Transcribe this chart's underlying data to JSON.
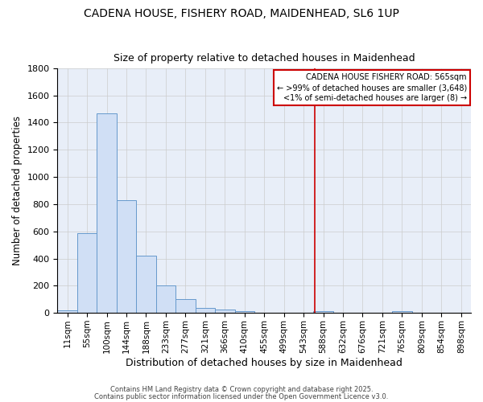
{
  "title1": "CADENA HOUSE, FISHERY ROAD, MAIDENHEAD, SL6 1UP",
  "title2": "Size of property relative to detached houses in Maidenhead",
  "xlabel": "Distribution of detached houses by size in Maidenhead",
  "ylabel": "Number of detached properties",
  "bin_labels": [
    "11sqm",
    "55sqm",
    "100sqm",
    "144sqm",
    "188sqm",
    "233sqm",
    "277sqm",
    "321sqm",
    "366sqm",
    "410sqm",
    "455sqm",
    "499sqm",
    "543sqm",
    "588sqm",
    "632sqm",
    "676sqm",
    "721sqm",
    "765sqm",
    "809sqm",
    "854sqm",
    "898sqm"
  ],
  "bar_heights": [
    20,
    585,
    1470,
    830,
    420,
    200,
    100,
    35,
    25,
    15,
    0,
    0,
    0,
    15,
    0,
    0,
    0,
    15,
    0,
    0,
    0
  ],
  "bar_color": "#d0dff5",
  "bar_edge_color": "#6699cc",
  "vline_x": 12.55,
  "vline_color": "#cc0000",
  "ylim": [
    0,
    1800
  ],
  "yticks": [
    0,
    200,
    400,
    600,
    800,
    1000,
    1200,
    1400,
    1600,
    1800
  ],
  "grid_color": "#cccccc",
  "bg_color": "#e8eef8",
  "legend_title": "CADENA HOUSE FISHERY ROAD: 565sqm",
  "legend_line1": "← >99% of detached houses are smaller (3,648)",
  "legend_line2": "<1% of semi-detached houses are larger (8) →",
  "legend_box_color": "#ffffff",
  "legend_border_color": "#cc0000",
  "footnote1": "Contains HM Land Registry data © Crown copyright and database right 2025.",
  "footnote2": "Contains public sector information licensed under the Open Government Licence v3.0."
}
